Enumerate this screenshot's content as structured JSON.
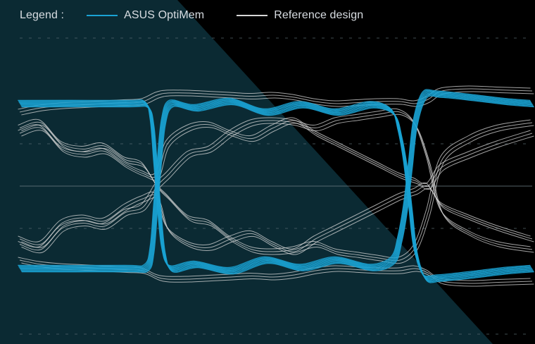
{
  "legend": {
    "title": "Legend :",
    "items": [
      {
        "label": "ASUS OptiMem",
        "color": "#1aa3d4"
      },
      {
        "label": "Reference design",
        "color": "#d8d8d8"
      }
    ]
  },
  "chart_data": {
    "type": "line",
    "title": "",
    "xlabel": "",
    "ylabel": "",
    "grid": true,
    "legend_position": "top-left",
    "background_colors": {
      "band": "#0b2a33",
      "base": "#000000"
    },
    "series": [
      {
        "name": "ASUS OptiMem",
        "color": "#1aa3d4",
        "traces": [
          {
            "x": [
              0,
              150,
              180,
              188,
              193,
              198,
              204,
              215,
              250,
              300,
              350,
              400,
              450,
              500,
              530,
              540,
              548,
              555,
              562,
              575,
              595,
              640,
              690,
              728
            ],
            "y": [
              0.78,
              0.78,
              0.77,
              0.6,
              0.2,
              -0.2,
              -0.6,
              -0.78,
              -0.74,
              -0.8,
              -0.7,
              -0.77,
              -0.7,
              -0.77,
              -0.7,
              -0.5,
              -0.2,
              0.2,
              0.6,
              0.86,
              0.87,
              0.84,
              0.8,
              0.78
            ]
          },
          {
            "x": [
              0,
              150,
              180,
              188,
              193,
              198,
              204,
              215,
              250,
              300,
              350,
              400,
              450,
              500,
              530,
              540,
              548,
              555,
              562,
              575,
              595,
              640,
              690,
              728
            ],
            "y": [
              -0.78,
              -0.78,
              -0.77,
              -0.6,
              -0.2,
              0.2,
              0.6,
              0.78,
              0.74,
              0.8,
              0.7,
              0.77,
              0.7,
              0.77,
              0.7,
              0.5,
              0.2,
              -0.2,
              -0.6,
              -0.86,
              -0.87,
              -0.84,
              -0.8,
              -0.78
            ]
          }
        ]
      },
      {
        "name": "Reference design",
        "color": "#d8d8d8",
        "traces": [
          {
            "x": [
              0,
              30,
              60,
              90,
              120,
              150,
              175,
              195,
              210,
              240,
              270,
              300,
              330,
              360,
              390,
              420,
              450,
              480,
              510,
              540,
              562,
              580,
              600,
              640,
              680,
              728
            ],
            "y": [
              0.7,
              0.74,
              0.76,
              0.77,
              0.78,
              0.79,
              0.8,
              0.86,
              0.88,
              0.88,
              0.87,
              0.86,
              0.85,
              0.86,
              0.84,
              0.8,
              0.78,
              0.79,
              0.8,
              0.8,
              0.78,
              0.82,
              0.9,
              0.92,
              0.91,
              0.9
            ]
          },
          {
            "x": [
              0,
              30,
              60,
              90,
              120,
              150,
              175,
              195,
              210,
              240,
              270,
              300,
              330,
              360,
              390,
              420,
              450,
              480,
              510,
              540,
              562,
              580,
              600,
              640,
              680,
              728
            ],
            "y": [
              0.55,
              0.6,
              0.4,
              0.35,
              0.38,
              0.25,
              0.2,
              0.0,
              -0.1,
              -0.3,
              -0.35,
              -0.5,
              -0.6,
              -0.62,
              -0.6,
              -0.55,
              -0.62,
              -0.65,
              -0.68,
              -0.7,
              -0.58,
              -0.25,
              0.25,
              0.45,
              0.55,
              0.6
            ]
          },
          {
            "x": [
              0,
              30,
              60,
              90,
              120,
              150,
              175,
              195,
              210,
              240,
              270,
              300,
              330,
              360,
              390,
              420,
              450,
              480,
              510,
              540,
              562,
              580,
              600,
              640,
              680,
              728
            ],
            "y": [
              0.5,
              0.55,
              0.35,
              0.3,
              0.33,
              0.2,
              0.12,
              0.1,
              0.4,
              0.55,
              0.58,
              0.5,
              0.45,
              0.55,
              0.62,
              0.5,
              0.4,
              0.3,
              0.2,
              0.1,
              0.05,
              0.0,
              0.18,
              0.3,
              0.4,
              0.5
            ]
          },
          {
            "x": [
              0,
              30,
              60,
              90,
              120,
              150,
              175,
              195,
              210,
              240,
              270,
              300,
              330,
              360,
              390,
              420,
              450,
              480,
              510,
              540,
              562,
              580,
              600,
              640,
              680,
              728
            ],
            "y": [
              -0.7,
              -0.74,
              -0.76,
              -0.77,
              -0.78,
              -0.79,
              -0.8,
              -0.86,
              -0.88,
              -0.88,
              -0.87,
              -0.86,
              -0.85,
              -0.86,
              -0.84,
              -0.8,
              -0.78,
              -0.79,
              -0.8,
              -0.8,
              -0.78,
              -0.82,
              -0.9,
              -0.92,
              -0.91,
              -0.9
            ]
          },
          {
            "x": [
              0,
              30,
              60,
              90,
              120,
              150,
              175,
              195,
              210,
              240,
              270,
              300,
              330,
              360,
              390,
              420,
              450,
              480,
              510,
              540,
              562,
              580,
              600,
              640,
              680,
              728
            ],
            "y": [
              -0.55,
              -0.6,
              -0.4,
              -0.35,
              -0.38,
              -0.25,
              -0.2,
              0.0,
              0.1,
              0.3,
              0.35,
              0.5,
              0.6,
              0.62,
              0.6,
              0.55,
              0.62,
              0.65,
              0.68,
              0.7,
              0.58,
              0.25,
              -0.25,
              -0.45,
              -0.55,
              -0.6
            ]
          },
          {
            "x": [
              0,
              30,
              60,
              90,
              120,
              150,
              175,
              195,
              210,
              240,
              270,
              300,
              330,
              360,
              390,
              420,
              450,
              480,
              510,
              540,
              562,
              580,
              600,
              640,
              680,
              728
            ],
            "y": [
              -0.5,
              -0.55,
              -0.35,
              -0.3,
              -0.33,
              -0.2,
              -0.12,
              -0.1,
              -0.4,
              -0.55,
              -0.58,
              -0.5,
              -0.45,
              -0.55,
              -0.62,
              -0.5,
              -0.4,
              -0.3,
              -0.2,
              -0.1,
              -0.05,
              0.0,
              -0.18,
              -0.3,
              -0.4,
              -0.5
            ]
          }
        ]
      }
    ]
  }
}
